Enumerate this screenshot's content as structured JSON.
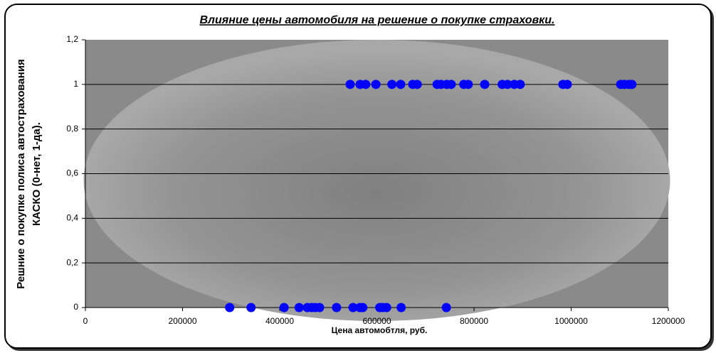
{
  "chart_data": {
    "type": "scatter",
    "title": "Влияние цены автомобиля на решение о покупке страховки.",
    "xlabel": "Цена автомобтля, руб.",
    "ylabel": "Решние о покупке полиса автострахования КАСКО (0-нет, 1-да).",
    "color": "#0000ff",
    "x": [
      545000,
      565500,
      577000,
      598000,
      631000,
      649000,
      674000,
      683000,
      724000,
      732000,
      744000,
      753000,
      779000,
      788000,
      822000,
      858000,
      869000,
      883000,
      895000,
      983000,
      992000,
      1102000,
      1110000,
      1119000,
      1125000,
      297000,
      341000,
      409000,
      440000,
      457000,
      466000,
      473000,
      482000,
      517000,
      551000,
      565000,
      571000,
      606000,
      612000,
      620000,
      650000,
      743000
    ],
    "values": [
      1,
      1,
      1,
      1,
      1,
      1,
      1,
      1,
      1,
      1,
      1,
      1,
      1,
      1,
      1,
      1,
      1,
      1,
      1,
      1,
      1,
      1,
      1,
      1,
      1,
      0,
      0,
      0,
      0,
      0,
      0,
      0,
      0,
      0,
      0,
      0,
      0,
      0,
      0,
      0,
      0,
      0
    ],
    "xlim": [
      0,
      1200000
    ],
    "xticks": [
      0,
      200000,
      400000,
      600000,
      800000,
      1000000,
      1200000
    ],
    "ylim": [
      0,
      1.2
    ],
    "yticks": [
      0,
      {
        "value": 0.2,
        "label": "0,2"
      },
      {
        "value": 0.4,
        "label": "0,4"
      },
      {
        "value": 0.6,
        "label": "0,6"
      },
      {
        "value": 0.8,
        "label": "0,8"
      },
      1,
      {
        "value": 1.2,
        "label": "1,2"
      }
    ],
    "grid": true
  }
}
